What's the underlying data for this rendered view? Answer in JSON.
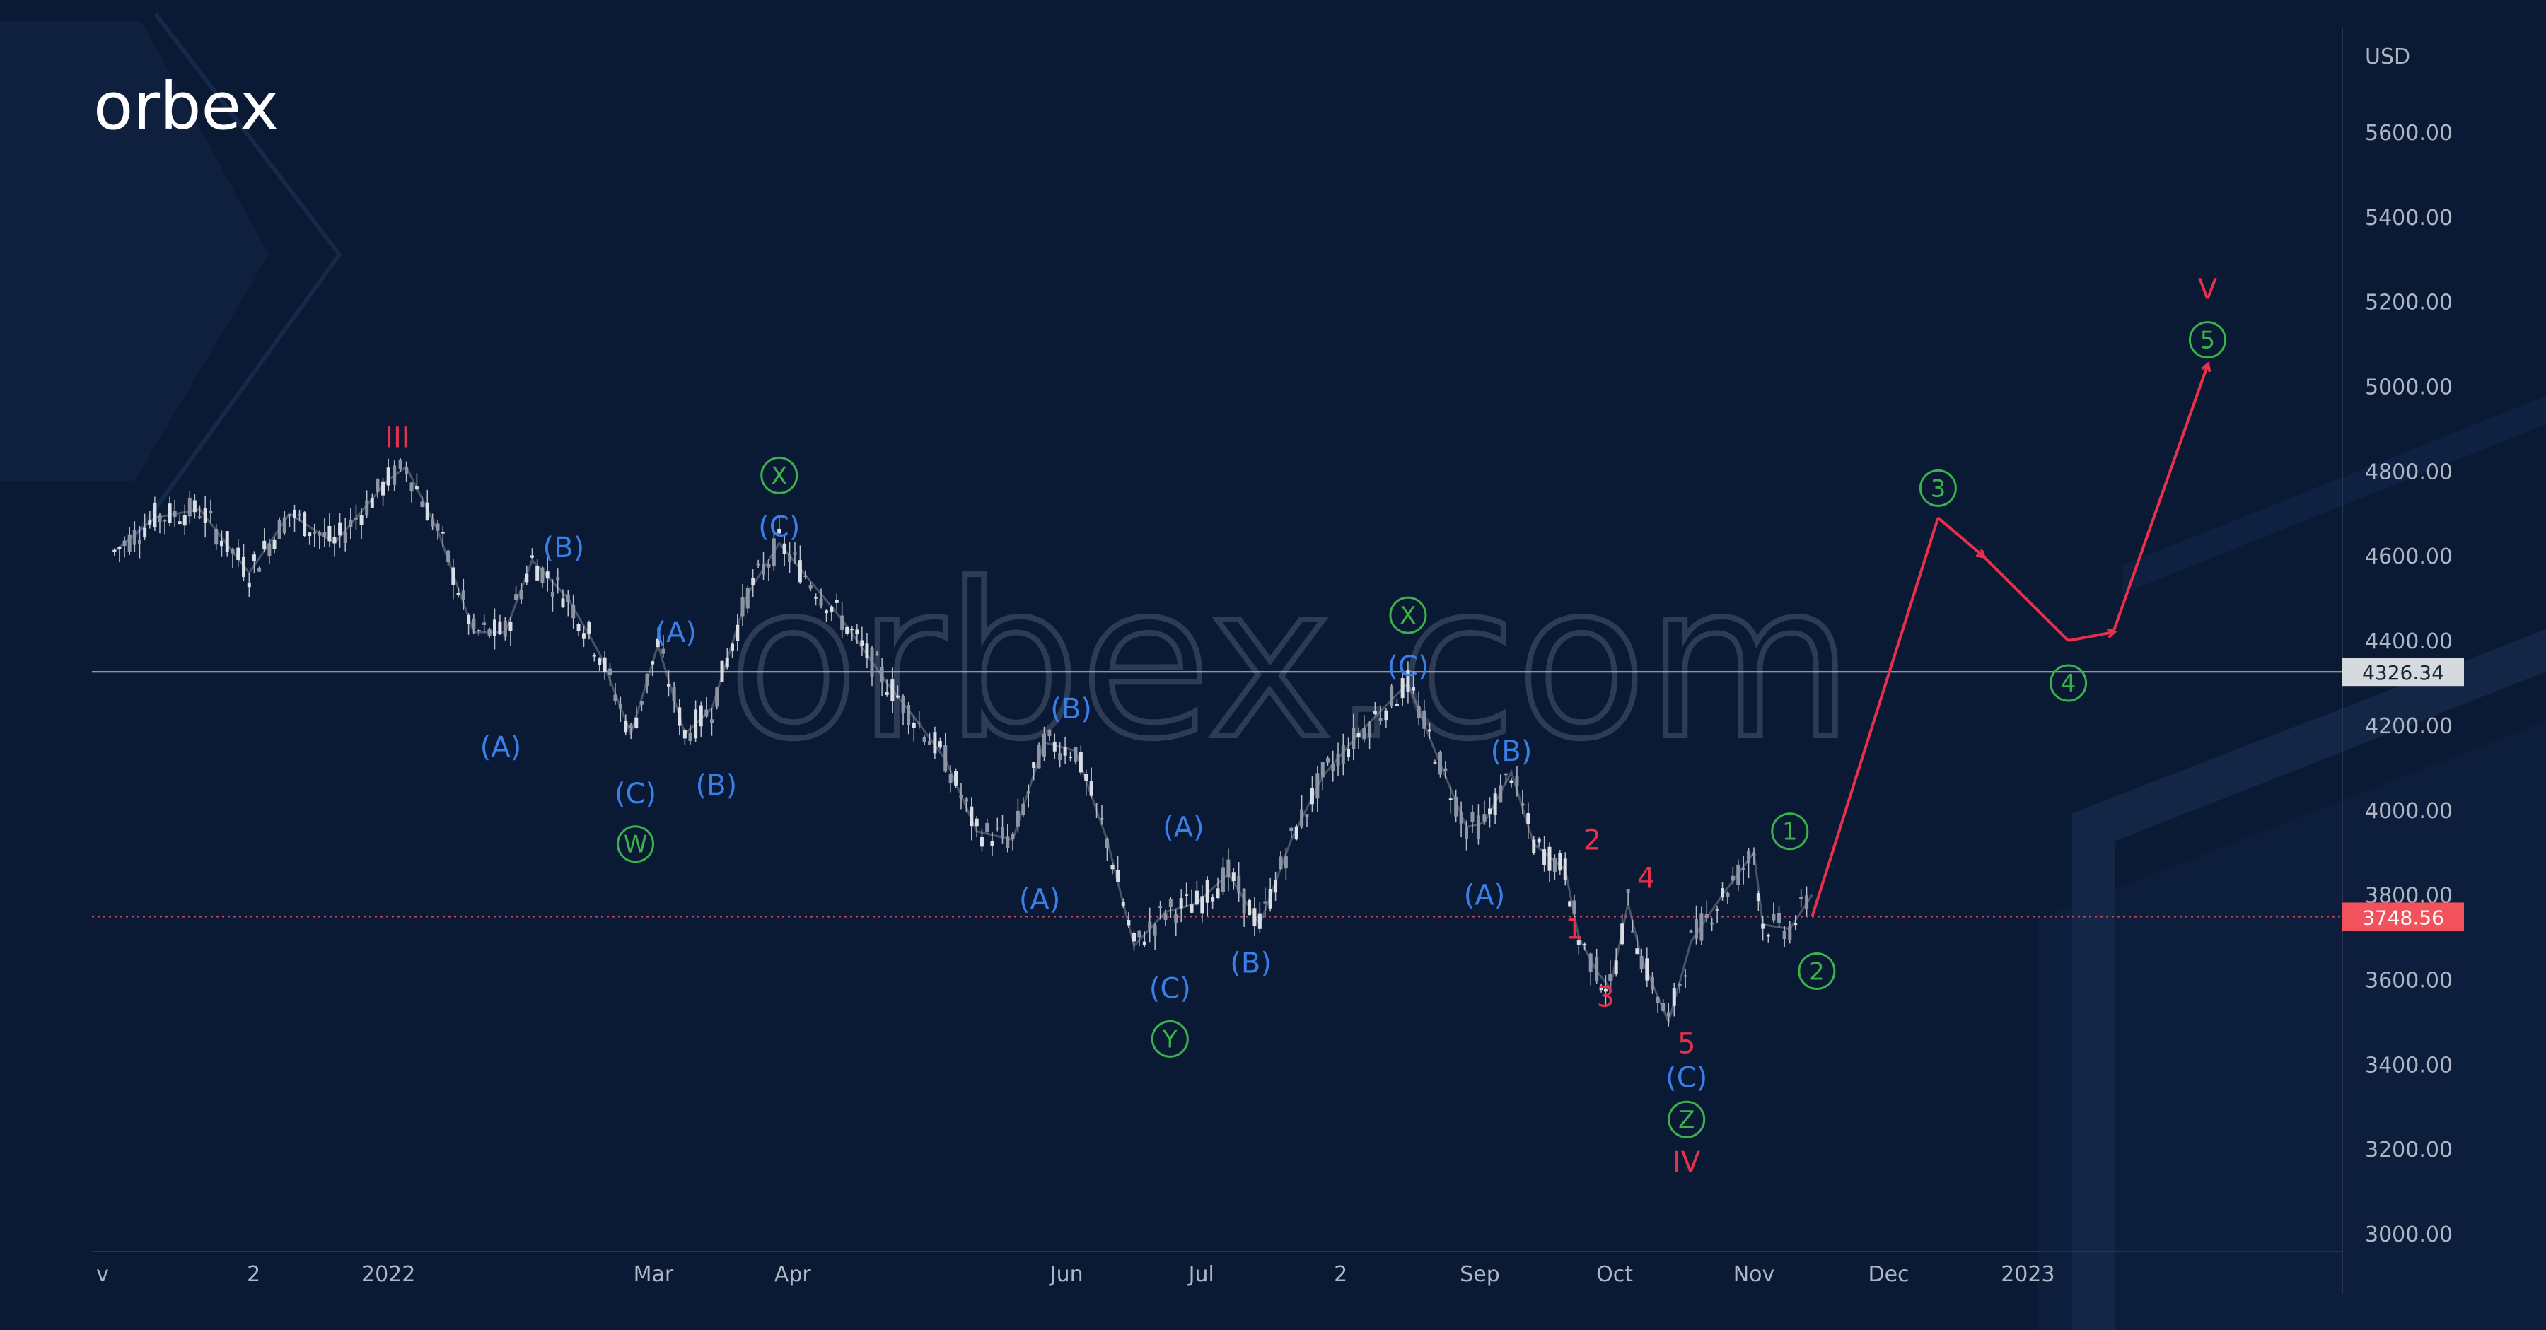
{
  "brand": {
    "logo_text": "orbex",
    "watermark_text": "orbex.com"
  },
  "colors": {
    "background": "#0b1a34",
    "price": "#b8bec9",
    "blue": "#3a7ee8",
    "red": "#e8304a",
    "green": "#3bb14c",
    "current_price_tag": "#f2525b",
    "level_tag": "#d6d9de"
  },
  "chart_data": {
    "type": "line",
    "currency_label": "USD",
    "ylim": [
      3000,
      5650
    ],
    "grid": false,
    "y_ticks": [
      "5600.00",
      "5400.00",
      "5200.00",
      "5000.00",
      "4800.00",
      "4600.00",
      "4400.00",
      "4200.00",
      "4000.00",
      "3800.00",
      "3600.00",
      "3400.00",
      "3200.00",
      "3000.00"
    ],
    "x_ticks": [
      "v",
      "2",
      "2022",
      "Mar",
      "Apr",
      "Jun",
      "Jul",
      "2",
      "Sep",
      "Oct",
      "Nov",
      "Dec",
      "2023"
    ],
    "levels": [
      {
        "value": 4326.34,
        "label": "4326.34",
        "style": "solid"
      },
      {
        "value": 3748.56,
        "label": "3748.56",
        "style": "dotted"
      }
    ],
    "price_series": {
      "name": "",
      "x": [
        "2021-11-01",
        "2021-11-10",
        "2021-11-20",
        "2021-12-01",
        "2021-12-10",
        "2021-12-20",
        "2022-01-01",
        "2022-01-05",
        "2022-01-12",
        "2022-01-20",
        "2022-01-27",
        "2022-02-02",
        "2022-02-10",
        "2022-02-17",
        "2022-02-24",
        "2022-03-02",
        "2022-03-08",
        "2022-03-14",
        "2022-03-22",
        "2022-03-29",
        "2022-04-05",
        "2022-04-12",
        "2022-04-22",
        "2022-04-28",
        "2022-05-05",
        "2022-05-12",
        "2022-05-20",
        "2022-05-27",
        "2022-06-03",
        "2022-06-10",
        "2022-06-16",
        "2022-06-23",
        "2022-06-30",
        "2022-07-07",
        "2022-07-14",
        "2022-07-21",
        "2022-07-28",
        "2022-08-05",
        "2022-08-16",
        "2022-08-22",
        "2022-08-29",
        "2022-09-02",
        "2022-09-08",
        "2022-09-13",
        "2022-09-20",
        "2022-09-23",
        "2022-09-27",
        "2022-09-30",
        "2022-10-04",
        "2022-10-07",
        "2022-10-13",
        "2022-10-18",
        "2022-10-25",
        "2022-11-01",
        "2022-11-03",
        "2022-11-09",
        "2022-11-14"
      ],
      "y": [
        4610,
        4690,
        4710,
        4560,
        4700,
        4630,
        4780,
        4810,
        4660,
        4420,
        4420,
        4590,
        4500,
        4370,
        4180,
        4390,
        4180,
        4240,
        4510,
        4630,
        4540,
        4450,
        4300,
        4220,
        4120,
        3950,
        3930,
        4160,
        4140,
        3930,
        3680,
        3760,
        3780,
        3850,
        3730,
        3930,
        4080,
        4180,
        4300,
        4140,
        3960,
        3970,
        4090,
        3920,
        3860,
        3700,
        3620,
        3580,
        3780,
        3650,
        3500,
        3690,
        3800,
        3900,
        3730,
        3720,
        3800
      ]
    },
    "forecast_path": {
      "x": [
        "2022-11-14",
        "2022-12-12",
        "2022-12-22",
        "2023-01-10",
        "2023-01-20",
        "2023-02-10"
      ],
      "y": [
        3750,
        4690,
        4600,
        4400,
        4420,
        5050
      ]
    },
    "annotations": [
      {
        "text": "III",
        "style": "red",
        "x": "2022-01-03",
        "y": 4880
      },
      {
        "text": "(B)",
        "style": "blue",
        "x": "2022-02-09",
        "y": 4620
      },
      {
        "text": "(A)",
        "style": "blue",
        "x": "2022-01-26",
        "y": 4150
      },
      {
        "text": "(C)",
        "style": "blue",
        "x": "2022-02-25",
        "y": 4040
      },
      {
        "text": "W",
        "style": "green-circle",
        "x": "2022-02-25",
        "y": 3920
      },
      {
        "text": "(A)",
        "style": "blue",
        "x": "2022-03-06",
        "y": 4420
      },
      {
        "text": "(B)",
        "style": "blue",
        "x": "2022-03-15",
        "y": 4060
      },
      {
        "text": "X",
        "style": "green-circle",
        "x": "2022-03-29",
        "y": 4790
      },
      {
        "text": "(C)",
        "style": "blue",
        "x": "2022-03-29",
        "y": 4670
      },
      {
        "text": "(B)",
        "style": "blue",
        "x": "2022-06-02",
        "y": 4240
      },
      {
        "text": "(A)",
        "style": "blue",
        "x": "2022-05-26",
        "y": 3790
      },
      {
        "text": "(A)",
        "style": "blue",
        "x": "2022-06-27",
        "y": 3960
      },
      {
        "text": "(C)",
        "style": "blue",
        "x": "2022-06-24",
        "y": 3580
      },
      {
        "text": "Y",
        "style": "green-circle",
        "x": "2022-06-24",
        "y": 3460
      },
      {
        "text": "(B)",
        "style": "blue",
        "x": "2022-07-12",
        "y": 3640
      },
      {
        "text": "X",
        "style": "green-circle",
        "x": "2022-08-16",
        "y": 4460
      },
      {
        "text": "(C)",
        "style": "blue",
        "x": "2022-08-16",
        "y": 4340
      },
      {
        "text": "(B)",
        "style": "blue",
        "x": "2022-09-08",
        "y": 4140
      },
      {
        "text": "(A)",
        "style": "blue",
        "x": "2022-09-02",
        "y": 3800
      },
      {
        "text": "2",
        "style": "red",
        "x": "2022-09-26",
        "y": 3930
      },
      {
        "text": "1",
        "style": "red",
        "x": "2022-09-22",
        "y": 3720
      },
      {
        "text": "3",
        "style": "red",
        "x": "2022-09-29",
        "y": 3560
      },
      {
        "text": "4",
        "style": "red",
        "x": "2022-10-08",
        "y": 3840
      },
      {
        "text": "5",
        "style": "red",
        "x": "2022-10-17",
        "y": 3450
      },
      {
        "text": "(C)",
        "style": "blue",
        "x": "2022-10-17",
        "y": 3370
      },
      {
        "text": "Z",
        "style": "green-circle",
        "x": "2022-10-17",
        "y": 3270
      },
      {
        "text": "IV",
        "style": "red",
        "x": "2022-10-17",
        "y": 3170
      },
      {
        "text": "1",
        "style": "green-circle",
        "x": "2022-11-09",
        "y": 3950
      },
      {
        "text": "2",
        "style": "green-circle",
        "x": "2022-11-15",
        "y": 3620
      },
      {
        "text": "3",
        "style": "green-circle",
        "x": "2022-12-12",
        "y": 4760
      },
      {
        "text": "4",
        "style": "green-circle",
        "x": "2023-01-10",
        "y": 4300
      },
      {
        "text": "5",
        "style": "green-circle",
        "x": "2023-02-10",
        "y": 5110
      },
      {
        "text": "V",
        "style": "red",
        "x": "2023-02-10",
        "y": 5230
      }
    ]
  }
}
